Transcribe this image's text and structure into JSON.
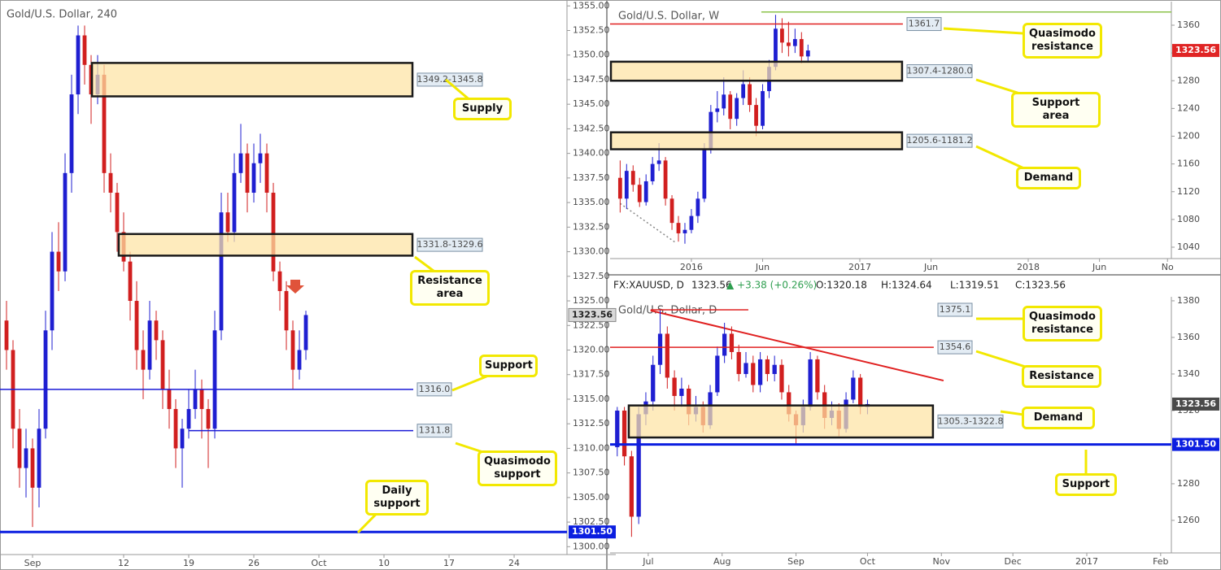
{
  "chart_data": [
    {
      "type": "candlestick",
      "title": "Gold/U.S. Dollar, 240",
      "x": [
        -2,
        -1.5,
        -1,
        -0.5,
        0,
        0.5,
        1,
        1.5,
        2,
        2.5,
        3,
        3.5,
        4,
        4.5,
        5,
        5.5,
        6,
        6.5,
        7,
        7.5,
        8,
        8.5,
        9,
        9.5,
        10,
        10.5,
        11,
        11.5,
        12,
        12.5,
        13,
        13.5,
        14,
        14.5,
        15,
        15.5,
        16,
        16.5,
        17,
        17.5,
        18,
        18.5,
        19,
        19.5,
        20,
        20.5,
        21
      ],
      "ohlc": [
        [
          1323,
          1325,
          1318,
          1320
        ],
        [
          1320,
          1321,
          1310,
          1312
        ],
        [
          1312,
          1314,
          1306,
          1308
        ],
        [
          1308,
          1312,
          1305,
          1310
        ],
        [
          1310,
          1311,
          1302,
          1306
        ],
        [
          1306,
          1314,
          1304,
          1312
        ],
        [
          1312,
          1324,
          1311,
          1322
        ],
        [
          1322,
          1332,
          1320,
          1330
        ],
        [
          1330,
          1333,
          1326,
          1328
        ],
        [
          1328,
          1340,
          1327,
          1338
        ],
        [
          1338,
          1348,
          1336,
          1346
        ],
        [
          1346,
          1353,
          1344,
          1352
        ],
        [
          1352,
          1353,
          1347,
          1349
        ],
        [
          1349,
          1350,
          1343,
          1346
        ],
        [
          1346,
          1350,
          1345,
          1348
        ],
        [
          1348,
          1349,
          1336,
          1338
        ],
        [
          1338,
          1340,
          1334,
          1336
        ],
        [
          1336,
          1337,
          1330,
          1332
        ],
        [
          1332,
          1334,
          1328,
          1329
        ],
        [
          1329,
          1330,
          1323,
          1325
        ],
        [
          1325,
          1327,
          1318,
          1320
        ],
        [
          1320,
          1322,
          1315,
          1318
        ],
        [
          1318,
          1325,
          1317,
          1323
        ],
        [
          1323,
          1324,
          1319,
          1321
        ],
        [
          1321,
          1322,
          1314,
          1316
        ],
        [
          1316,
          1318,
          1312,
          1314
        ],
        [
          1314,
          1315,
          1308,
          1310
        ],
        [
          1310,
          1313,
          1306,
          1312
        ],
        [
          1312,
          1316,
          1311,
          1314
        ],
        [
          1314,
          1318,
          1313,
          1316
        ],
        [
          1316,
          1317,
          1311,
          1314
        ],
        [
          1314,
          1315,
          1308,
          1312
        ],
        [
          1312,
          1324,
          1311,
          1322
        ],
        [
          1322,
          1336,
          1321,
          1334
        ],
        [
          1334,
          1336,
          1331,
          1332
        ],
        [
          1332,
          1340,
          1331,
          1338
        ],
        [
          1338,
          1343,
          1337,
          1340
        ],
        [
          1340,
          1341,
          1334,
          1336
        ],
        [
          1336,
          1341,
          1335,
          1339
        ],
        [
          1339,
          1342,
          1337,
          1340
        ],
        [
          1340,
          1341,
          1334,
          1336
        ],
        [
          1336,
          1337,
          1327,
          1328
        ],
        [
          1328,
          1329,
          1324,
          1326
        ],
        [
          1326,
          1327,
          1320,
          1322
        ],
        [
          1322,
          1323,
          1316,
          1318
        ],
        [
          1318,
          1322,
          1317,
          1320
        ],
        [
          1320,
          1324,
          1319,
          1323.56
        ]
      ],
      "colors": {
        "up": "#1f1fd1",
        "down": "#d11f1f"
      },
      "xlim": [
        -2.5,
        41.06
      ],
      "ylim": [
        1299.2,
        1355.6
      ],
      "xticks": [
        {
          "value": 0,
          "label": "Sep"
        },
        {
          "value": 7,
          "label": "12"
        },
        {
          "value": 12,
          "label": "19"
        },
        {
          "value": 17,
          "label": "26"
        },
        {
          "value": 22,
          "label": "Oct"
        },
        {
          "value": 27,
          "label": "10"
        },
        {
          "value": 32,
          "label": "17"
        },
        {
          "value": 37,
          "label": "24"
        }
      ],
      "yticks": [
        {
          "value": 1300,
          "label": "1300.00"
        },
        {
          "value": 1302.5,
          "label": "1302.50"
        },
        {
          "value": 1305,
          "label": "1305.00"
        },
        {
          "value": 1307.5,
          "label": "1307.50"
        },
        {
          "value": 1310,
          "label": "1310.00"
        },
        {
          "value": 1312.5,
          "label": "1312.50"
        },
        {
          "value": 1315,
          "label": "1315.00"
        },
        {
          "value": 1317.5,
          "label": "1317.50"
        },
        {
          "value": 1320,
          "label": "1320.00"
        },
        {
          "value": 1322.5,
          "label": "1322.50"
        },
        {
          "value": 1325,
          "label": "1325.00"
        },
        {
          "value": 1327.5,
          "label": "1327.50"
        },
        {
          "value": 1330,
          "label": "1330.00"
        },
        {
          "value": 1332.5,
          "label": "1332.50"
        },
        {
          "value": 1335,
          "label": "1335.00"
        },
        {
          "value": 1337.5,
          "label": "1337.50"
        },
        {
          "value": 1340,
          "label": "1340.00"
        },
        {
          "value": 1342.5,
          "label": "1342.50"
        },
        {
          "value": 1345,
          "label": "1345.00"
        },
        {
          "value": 1347.5,
          "label": "1347.50"
        },
        {
          "value": 1350,
          "label": "1350.00"
        },
        {
          "value": 1352.5,
          "label": "1352.50"
        },
        {
          "value": 1355,
          "label": "1355.00"
        }
      ],
      "zones": [
        {
          "label": "1349.2-1345.8",
          "high": 1349.2,
          "low": 1345.8,
          "x0": 4.5,
          "x1": 29.25
        },
        {
          "label": "1331.8-1329.6",
          "high": 1331.8,
          "low": 1329.6,
          "x0": 6.56,
          "x1": 29.25
        }
      ],
      "levels": [
        {
          "value": 1316,
          "label": "1316.0",
          "color": "#1a1ad6",
          "x0": -2.5,
          "x1": 29.25
        },
        {
          "value": 1311.8,
          "label": "1311.8",
          "color": "#1a1ad6",
          "x0": 12,
          "x1": 29.25
        },
        {
          "value": 1301.5,
          "label": "1301.50",
          "color": "#0b1ee0",
          "x0": -2.5,
          "x1": 41.06,
          "tag": true
        }
      ],
      "last_price": {
        "value": 1323.56,
        "color": "#d9d9d9"
      },
      "annotations": [
        "Supply",
        "Resistance area",
        "Support",
        "Quasimodo support",
        "Daily support"
      ]
    },
    {
      "type": "candlestick",
      "title": "Gold/U.S. Dollar, W",
      "x": [
        -22,
        -20,
        -18,
        -16,
        -14,
        -12,
        -10,
        -8,
        -6,
        -4,
        -2,
        0,
        2,
        4,
        6,
        8,
        10,
        12,
        14,
        16,
        18,
        20,
        22,
        24,
        26,
        28,
        30,
        32,
        34,
        36
      ],
      "ohlc": [
        [
          1140,
          1165,
          1090,
          1110
        ],
        [
          1110,
          1160,
          1095,
          1150
        ],
        [
          1150,
          1158,
          1120,
          1130
        ],
        [
          1130,
          1140,
          1098,
          1105
        ],
        [
          1105,
          1145,
          1100,
          1135
        ],
        [
          1135,
          1170,
          1130,
          1160
        ],
        [
          1160,
          1190,
          1150,
          1165
        ],
        [
          1165,
          1170,
          1100,
          1110
        ],
        [
          1110,
          1115,
          1065,
          1075
        ],
        [
          1075,
          1085,
          1048,
          1060
        ],
        [
          1060,
          1075,
          1045,
          1065
        ],
        [
          1065,
          1095,
          1060,
          1085
        ],
        [
          1085,
          1120,
          1075,
          1110
        ],
        [
          1110,
          1190,
          1105,
          1180
        ],
        [
          1180,
          1245,
          1175,
          1235
        ],
        [
          1235,
          1265,
          1220,
          1240
        ],
        [
          1240,
          1285,
          1230,
          1260
        ],
        [
          1260,
          1265,
          1210,
          1225
        ],
        [
          1225,
          1262,
          1215,
          1255
        ],
        [
          1255,
          1295,
          1245,
          1275
        ],
        [
          1275,
          1285,
          1235,
          1245
        ],
        [
          1245,
          1255,
          1200,
          1215
        ],
        [
          1215,
          1275,
          1210,
          1265
        ],
        [
          1265,
          1310,
          1255,
          1300
        ],
        [
          1300,
          1375,
          1295,
          1355
        ],
        [
          1355,
          1370,
          1320,
          1335
        ],
        [
          1335,
          1365,
          1315,
          1330
        ],
        [
          1330,
          1355,
          1320,
          1340
        ],
        [
          1340,
          1350,
          1305,
          1315
        ],
        [
          1315,
          1332,
          1308,
          1323.56
        ]
      ],
      "colors": {
        "up": "#1f1fd1",
        "down": "#d11f1f"
      },
      "xlim": [
        -25.1,
        148.2
      ],
      "ylim": [
        1023.6,
        1394.0
      ],
      "xticks": [
        {
          "value": 0,
          "label": "2016"
        },
        {
          "value": 22,
          "label": "Jun"
        },
        {
          "value": 52,
          "label": "2017"
        },
        {
          "value": 74,
          "label": "Jun"
        },
        {
          "value": 104,
          "label": "2018"
        },
        {
          "value": 126,
          "label": "Jun"
        },
        {
          "value": 147,
          "label": "No"
        }
      ],
      "yticks": [
        1040,
        1080,
        1120,
        1160,
        1200,
        1240,
        1280,
        1320,
        1360
      ],
      "zones": [
        {
          "label": "1307.4-1280.0",
          "high": 1307.4,
          "low": 1280.0,
          "x0": -25.1,
          "x1": 65.3
        },
        {
          "label": "1205.6-1181.2",
          "high": 1205.6,
          "low": 1181.2,
          "x0": -25.1,
          "x1": 65.3
        }
      ],
      "levels": [
        {
          "value": 1361.7,
          "label": "1361.7",
          "color": "#e02020",
          "x0": -25.1,
          "x1": 65.3
        },
        {
          "value": 1379,
          "color": "#8bc34a",
          "x0": 21.6,
          "x1": 148.2
        }
      ],
      "trendlines": [
        {
          "x": [
            -22,
            -5
          ],
          "y": [
            1103,
            1047
          ],
          "color": "#888888",
          "dash": true
        }
      ],
      "last_price": {
        "value": 1323.56,
        "color": "#e02424"
      },
      "annotations": [
        "Quasimodo resistance",
        "Support area",
        "Demand"
      ]
    },
    {
      "type": "candlestick",
      "title": "Gold/U.S. Dollar, D",
      "info": {
        "symbol": "FX:XAUUSD, D",
        "price": "1323.56",
        "change": "▲ +3.38 (+0.26%)",
        "open": "O:1320.18",
        "high": "H:1324.64",
        "low": "L:1319.51",
        "close": "C:1323.56"
      },
      "x": [
        -13,
        -10,
        -7,
        -4,
        -1,
        2,
        5,
        8,
        11,
        14,
        17,
        20,
        23,
        26,
        29,
        32,
        35,
        38,
        41,
        44,
        47,
        50,
        53,
        56,
        59,
        62,
        65,
        68,
        71,
        74,
        77,
        80,
        83,
        86,
        89,
        92
      ],
      "ohlc": [
        [
          1300,
          1322,
          1295,
          1320
        ],
        [
          1320,
          1322,
          1290,
          1295
        ],
        [
          1295,
          1298,
          1251,
          1262
        ],
        [
          1262,
          1322,
          1258,
          1318
        ],
        [
          1318,
          1330,
          1312,
          1325
        ],
        [
          1325,
          1350,
          1320,
          1345
        ],
        [
          1345,
          1375,
          1340,
          1362
        ],
        [
          1362,
          1366,
          1332,
          1338
        ],
        [
          1338,
          1342,
          1320,
          1328
        ],
        [
          1328,
          1338,
          1322,
          1332
        ],
        [
          1332,
          1334,
          1312,
          1318
        ],
        [
          1318,
          1328,
          1314,
          1322
        ],
        [
          1322,
          1325,
          1308,
          1312
        ],
        [
          1312,
          1334,
          1310,
          1330
        ],
        [
          1330,
          1355,
          1328,
          1350
        ],
        [
          1350,
          1368,
          1346,
          1362
        ],
        [
          1362,
          1366,
          1348,
          1352
        ],
        [
          1352,
          1356,
          1336,
          1340
        ],
        [
          1340,
          1352,
          1338,
          1346
        ],
        [
          1346,
          1350,
          1330,
          1334
        ],
        [
          1334,
          1352,
          1330,
          1348
        ],
        [
          1348,
          1350,
          1336,
          1340
        ],
        [
          1340,
          1350,
          1336,
          1345
        ],
        [
          1345,
          1348,
          1326,
          1330
        ],
        [
          1330,
          1334,
          1314,
          1318
        ],
        [
          1318,
          1320,
          1302,
          1312
        ],
        [
          1312,
          1326,
          1308,
          1322
        ],
        [
          1322,
          1352,
          1320,
          1348
        ],
        [
          1348,
          1350,
          1326,
          1330
        ],
        [
          1330,
          1334,
          1310,
          1316
        ],
        [
          1316,
          1325,
          1312,
          1320
        ],
        [
          1320,
          1324,
          1306,
          1310
        ],
        [
          1310,
          1330,
          1308,
          1326
        ],
        [
          1326,
          1342,
          1324,
          1338
        ],
        [
          1338,
          1340,
          1318,
          1322
        ],
        [
          1322,
          1326,
          1318,
          1323.56
        ]
      ],
      "colors": {
        "up": "#1f1fd1",
        "down": "#d11f1f"
      },
      "xlim": [
        -16.0,
        219.5
      ],
      "ylim": [
        1242.2,
        1382.2
      ],
      "xticks": [
        {
          "value": 0,
          "label": "Jul"
        },
        {
          "value": 31,
          "label": "Aug"
        },
        {
          "value": 62,
          "label": "Sep"
        },
        {
          "value": 92,
          "label": "Oct"
        },
        {
          "value": 123,
          "label": "Nov"
        },
        {
          "value": 153,
          "label": "Dec"
        },
        {
          "value": 184,
          "label": "2017"
        },
        {
          "value": 215,
          "label": "Feb"
        }
      ],
      "yticks": [
        1260,
        1280,
        1300,
        1320,
        1340,
        1360,
        1380
      ],
      "zones": [
        {
          "label": "1305.3-1322.8",
          "high": 1322.8,
          "low": 1305.3,
          "x0": -8.5,
          "x1": 119.8
        }
      ],
      "levels": [
        {
          "value": 1375.1,
          "label": "1375.1",
          "color": "#e02020",
          "x0": 1,
          "x1": 42
        },
        {
          "value": 1354.6,
          "label": "1354.6",
          "color": "#e02020",
          "x0": -16.0,
          "x1": 119.8
        },
        {
          "value": 1301.5,
          "label": "1301.50",
          "color": "#0b1ee0",
          "x0": -16.0,
          "x1": 219.5,
          "tag": true
        }
      ],
      "trendlines": [
        {
          "x": [
            1,
            123.9
          ],
          "y": [
            1374.7,
            1336.4
          ],
          "color": "#e02020"
        }
      ],
      "last_price": {
        "value": 1323.56,
        "color": "#4a4a4a"
      },
      "annotations": [
        "Quasimodo resistance",
        "Resistance",
        "Demand",
        "Support"
      ]
    }
  ]
}
